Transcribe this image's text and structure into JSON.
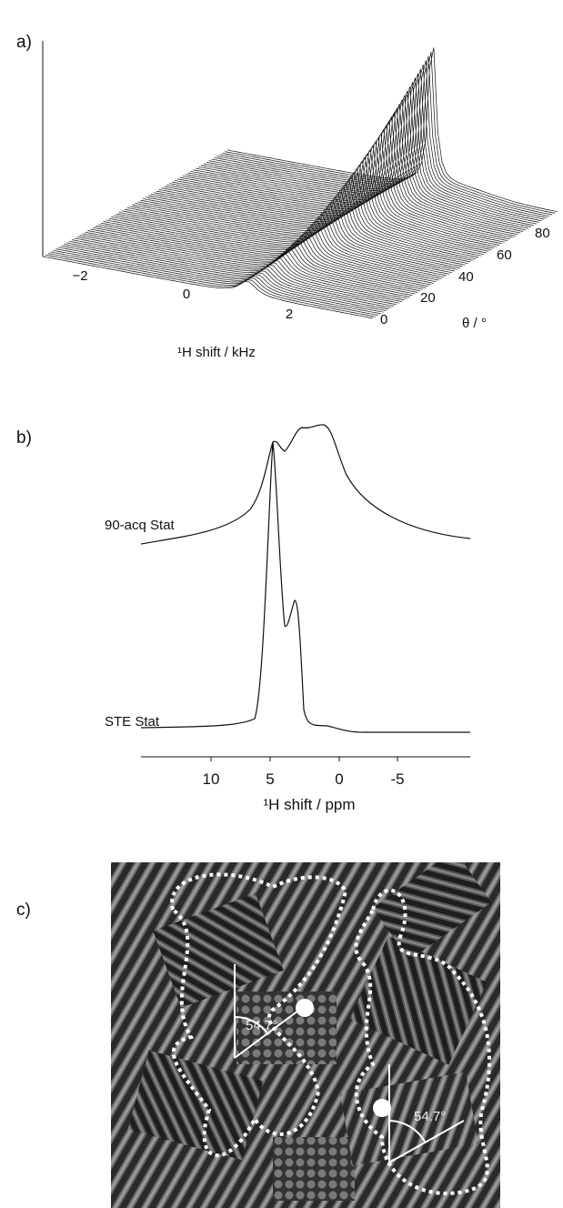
{
  "panels": {
    "a": {
      "label": "a)",
      "x_axis": {
        "title": "¹H shift / kHz",
        "ticks": [
          "−2",
          "0",
          "2"
        ]
      },
      "y_axis": {
        "title": "θ / °",
        "ticks": [
          "0",
          "20",
          "40",
          "60",
          "80"
        ]
      }
    },
    "b": {
      "label": "b)",
      "series": [
        "90-acq Stat",
        "STE Stat"
      ],
      "x_axis": {
        "title": "¹H shift / ppm",
        "ticks": [
          "10",
          "5",
          "0",
          "-5"
        ]
      }
    },
    "c": {
      "label": "c)",
      "angles": [
        "54.7°",
        "54.7°"
      ]
    }
  }
}
